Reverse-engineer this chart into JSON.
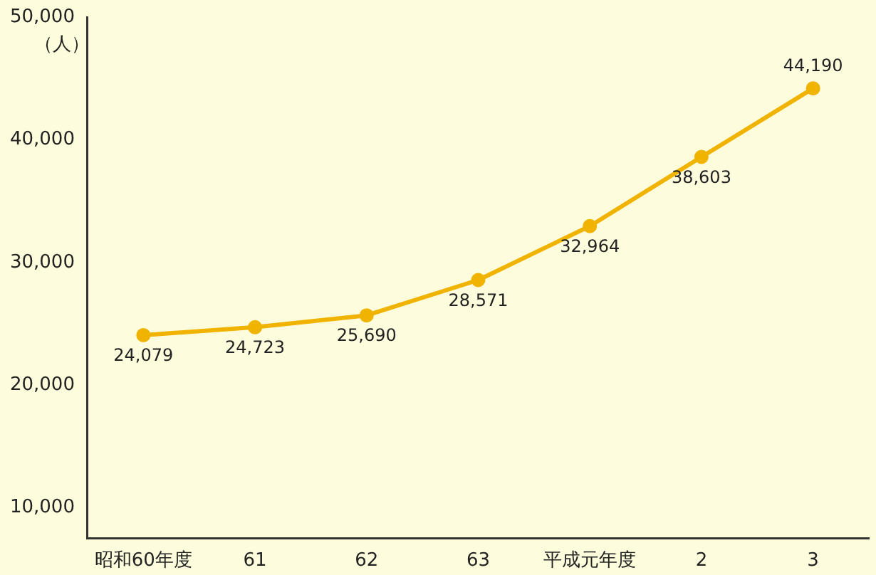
{
  "chart_data": {
    "type": "line",
    "ylabel": "（人）",
    "categories": [
      "昭和60年度",
      "61",
      "62",
      "63",
      "平成元年度",
      "2",
      "3"
    ],
    "series": [
      {
        "color": "#f0b400",
        "values": [
          24079,
          24723,
          25690,
          28571,
          32964,
          38603,
          44190
        ],
        "value_labels": [
          "24,079",
          "24,723",
          "25,690",
          "28,571",
          "32,964",
          "38,603",
          "44,190"
        ]
      }
    ],
    "ylim": [
      7500,
      50000
    ],
    "yticks": [
      {
        "value": 10000,
        "label": "10,000"
      },
      {
        "value": 20000,
        "label": "20,000"
      },
      {
        "value": 30000,
        "label": "30,000"
      },
      {
        "value": 40000,
        "label": "40,000"
      },
      {
        "value": 50000,
        "label": "50,000"
      }
    ],
    "grid": false,
    "legend": false,
    "marker": "circle",
    "line_style": "solid"
  }
}
